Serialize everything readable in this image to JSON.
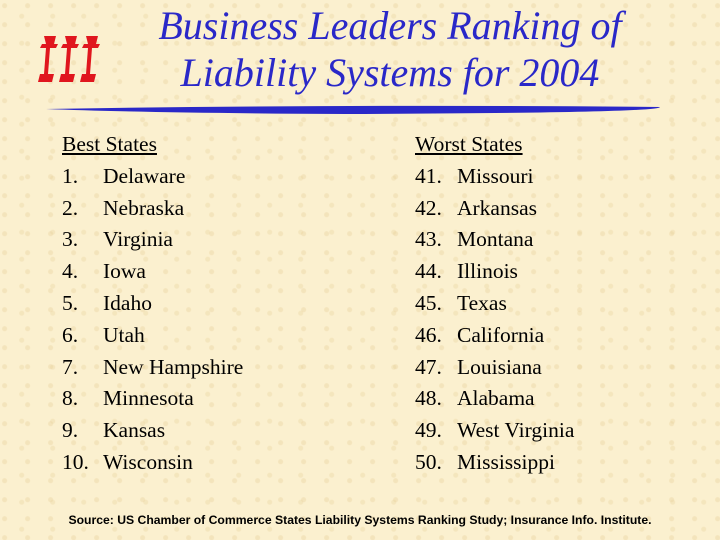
{
  "title": {
    "line1": "Business Leaders Ranking of",
    "line2": "Liability Systems for 2004"
  },
  "logo": {
    "icon": "iii-logo-icon",
    "color": "#e0161e"
  },
  "rule_color": "#2a28c8",
  "best": {
    "heading": "Best States",
    "items": [
      {
        "rank": "1.",
        "state": "Delaware"
      },
      {
        "rank": "2.",
        "state": "Nebraska"
      },
      {
        "rank": "3.",
        "state": "Virginia"
      },
      {
        "rank": "4.",
        "state": "Iowa"
      },
      {
        "rank": "5.",
        "state": "Idaho"
      },
      {
        "rank": "6.",
        "state": "Utah"
      },
      {
        "rank": "7.",
        "state": "New Hampshire"
      },
      {
        "rank": "8.",
        "state": "Minnesota"
      },
      {
        "rank": "9.",
        "state": "Kansas"
      },
      {
        "rank": "10.",
        "state": "Wisconsin"
      }
    ]
  },
  "worst": {
    "heading": "Worst States",
    "items": [
      {
        "rank": "41.",
        "state": "Missouri"
      },
      {
        "rank": "42.",
        "state": "Arkansas"
      },
      {
        "rank": "43.",
        "state": "Montana"
      },
      {
        "rank": "44.",
        "state": "Illinois"
      },
      {
        "rank": "45.",
        "state": "Texas"
      },
      {
        "rank": "46.",
        "state": "California"
      },
      {
        "rank": "47.",
        "state": "Louisiana"
      },
      {
        "rank": "48.",
        "state": "Alabama"
      },
      {
        "rank": "49.",
        "state": "West Virginia"
      },
      {
        "rank": "50.",
        "state": "Mississippi"
      }
    ]
  },
  "source": "Source: US Chamber of Commerce States Liability Systems Ranking Study; Insurance Info. Institute."
}
